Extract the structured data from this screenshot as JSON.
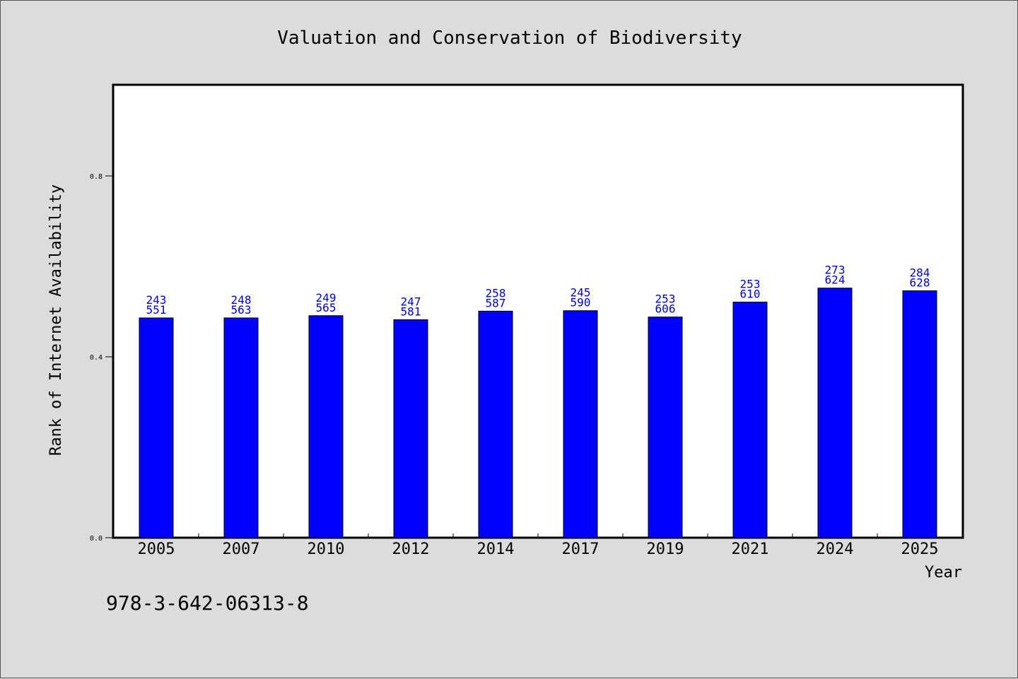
{
  "chart_data": {
    "type": "bar",
    "title": "Valuation and Conservation of Biodiversity",
    "xlabel": "Year",
    "ylabel": "Rank of Internet Availability",
    "categories": [
      "2005",
      "2007",
      "2010",
      "2012",
      "2014",
      "2017",
      "2019",
      "2021",
      "2024",
      "2025"
    ],
    "values": [
      0.486,
      0.486,
      0.491,
      0.482,
      0.501,
      0.502,
      0.488,
      0.521,
      0.552,
      0.546
    ],
    "bar_labels": [
      [
        "243",
        "551"
      ],
      [
        "248",
        "563"
      ],
      [
        "249",
        "565"
      ],
      [
        "247",
        "581"
      ],
      [
        "258",
        "587"
      ],
      [
        "245",
        "590"
      ],
      [
        "253",
        "606"
      ],
      [
        "253",
        "610"
      ],
      [
        "273",
        "624"
      ],
      [
        "284",
        "628"
      ]
    ],
    "yticks": [
      "0.0",
      "0.4",
      "0.8"
    ],
    "ylim": [
      0,
      1.0
    ],
    "grid": false,
    "bar_color": "#0000ff",
    "label_color": "#0000cc"
  },
  "footer": {
    "isbn": "978-3-642-06313-8"
  }
}
